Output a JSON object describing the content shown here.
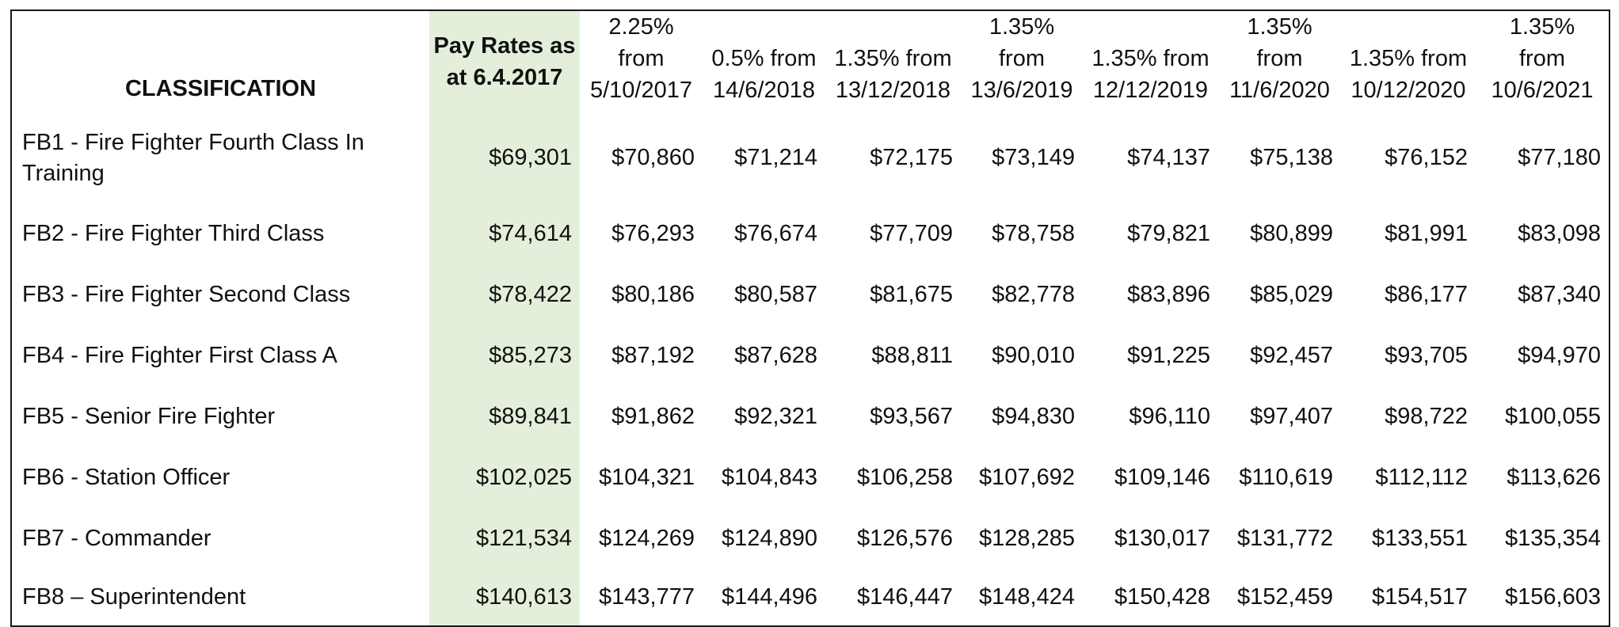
{
  "table": {
    "headers": {
      "classification": "CLASSIFICATION",
      "pay_rates_line1": "Pay Rates as",
      "pay_rates_line2": "at  6.4.2017",
      "increments": [
        [
          "2.25%",
          "from",
          "5/10/2017"
        ],
        [
          "0.5% from",
          "14/6/2018"
        ],
        [
          "1.35% from",
          "13/12/2018"
        ],
        [
          "1.35%",
          "from",
          "13/6/2019"
        ],
        [
          "1.35% from",
          "12/12/2019"
        ],
        [
          "1.35%",
          "from",
          "11/6/2020"
        ],
        [
          "1.35% from",
          "10/12/2020"
        ],
        [
          "1.35%",
          "from",
          "10/6/2021"
        ]
      ]
    },
    "rows": [
      {
        "classification_line1": "FB1 - Fire Fighter Fourth Class In",
        "classification_line2": "Training",
        "values": [
          "$69,301",
          "$70,860",
          "$71,214",
          "$72,175",
          "$73,149",
          "$74,137",
          "$75,138",
          "$76,152",
          "$77,180"
        ]
      },
      {
        "classification_line1": "FB2 - Fire Fighter Third Class",
        "values": [
          "$74,614",
          "$76,293",
          "$76,674",
          "$77,709",
          "$78,758",
          "$79,821",
          "$80,899",
          "$81,991",
          "$83,098"
        ]
      },
      {
        "classification_line1": "FB3 - Fire Fighter Second Class",
        "values": [
          "$78,422",
          "$80,186",
          "$80,587",
          "$81,675",
          "$82,778",
          "$83,896",
          "$85,029",
          "$86,177",
          "$87,340"
        ]
      },
      {
        "classification_line1": "FB4 - Fire Fighter First Class A",
        "values": [
          "$85,273",
          "$87,192",
          "$87,628",
          "$88,811",
          "$90,010",
          "$91,225",
          "$92,457",
          "$93,705",
          "$94,970"
        ]
      },
      {
        "classification_line1": "FB5 - Senior Fire Fighter",
        "values": [
          "$89,841",
          "$91,862",
          "$92,321",
          "$93,567",
          "$94,830",
          "$96,110",
          "$97,407",
          "$98,722",
          "$100,055"
        ]
      },
      {
        "classification_line1": "FB6 - Station Officer",
        "values": [
          "$102,025",
          "$104,321",
          "$104,843",
          "$106,258",
          "$107,692",
          "$109,146",
          "$110,619",
          "$112,112",
          "$113,626"
        ]
      },
      {
        "classification_line1": "FB7 - Commander",
        "values": [
          "$121,534",
          "$124,269",
          "$124,890",
          "$126,576",
          "$128,285",
          "$130,017",
          "$131,772",
          "$133,551",
          "$135,354"
        ]
      },
      {
        "classification_line1": "FB8 – Superintendent",
        "values": [
          "$140,613",
          "$143,777",
          "$144,496",
          "$146,447",
          "$148,424",
          "$150,428",
          "$152,459",
          "$154,517",
          "$156,603"
        ]
      }
    ],
    "colors": {
      "highlight_column": "#e3efda",
      "border": "#1a1a1a",
      "text": "#111111"
    }
  }
}
